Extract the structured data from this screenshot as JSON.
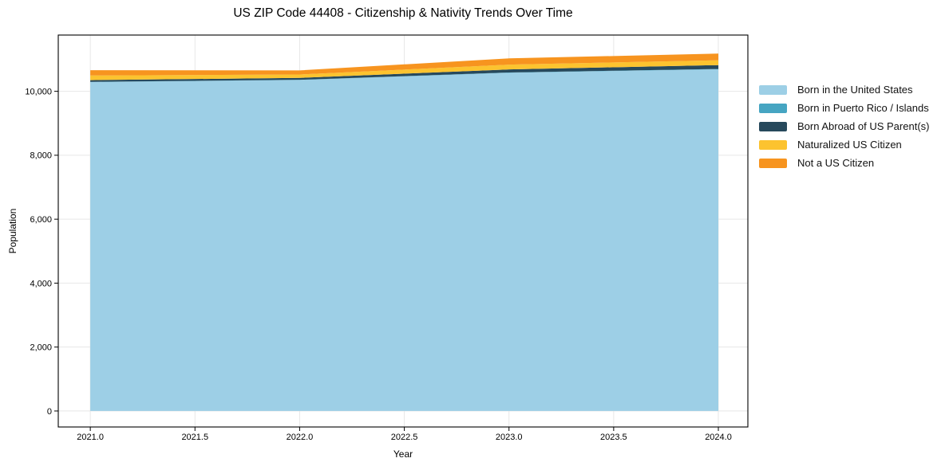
{
  "chart_data": {
    "type": "area",
    "stacked": true,
    "title": "US ZIP Code 44408 - Citizenship & Nativity Trends Over Time",
    "xlabel": "Year",
    "ylabel": "Population",
    "x": [
      2021,
      2022,
      2023,
      2024
    ],
    "series": [
      {
        "name": "Born in the United States",
        "color": "#9dcfe6",
        "values": [
          10290,
          10355,
          10580,
          10690
        ]
      },
      {
        "name": "Born in Puerto Rico / Islands",
        "color": "#46a5c2",
        "values": [
          5,
          5,
          10,
          10
        ]
      },
      {
        "name": "Born Abroad of US Parent(s)",
        "color": "#27495c",
        "values": [
          55,
          60,
          95,
          120
        ]
      },
      {
        "name": "Naturalized US Citizen",
        "color": "#fcc32f",
        "values": [
          145,
          105,
          150,
          150
        ]
      },
      {
        "name": "Not a US Citizen",
        "color": "#f7941f",
        "values": [
          165,
          130,
          195,
          210
        ]
      }
    ],
    "xlim": [
      2020.847,
      2024.141
    ],
    "ylim": [
      -500,
      11760
    ],
    "xticks": [
      2021.0,
      2021.5,
      2022.0,
      2022.5,
      2023.0,
      2023.5,
      2024.0
    ],
    "xtick_labels": [
      "2021.0",
      "2021.5",
      "2022.0",
      "2022.5",
      "2023.0",
      "2023.5",
      "2024.0"
    ],
    "yticks": [
      0,
      2000,
      4000,
      6000,
      8000,
      10000
    ],
    "ytick_labels": [
      "0",
      "2,000",
      "4,000",
      "6,000",
      "8,000",
      "10,000"
    ],
    "grid": true,
    "grid_color": "#e7e7e7",
    "axis_color": "#000000",
    "legend_position": "right of plot, no frame"
  }
}
